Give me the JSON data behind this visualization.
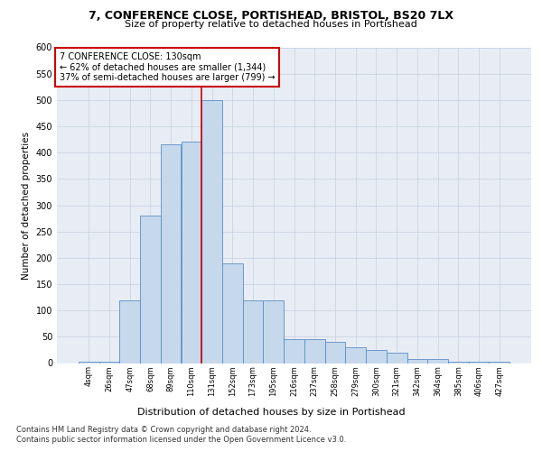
{
  "title": "7, CONFERENCE CLOSE, PORTISHEAD, BRISTOL, BS20 7LX",
  "subtitle": "Size of property relative to detached houses in Portishead",
  "xlabel": "Distribution of detached houses by size in Portishead",
  "ylabel": "Number of detached properties",
  "categories": [
    "4sqm",
    "26sqm",
    "47sqm",
    "68sqm",
    "89sqm",
    "110sqm",
    "131sqm",
    "152sqm",
    "173sqm",
    "195sqm",
    "216sqm",
    "237sqm",
    "258sqm",
    "279sqm",
    "300sqm",
    "321sqm",
    "342sqm",
    "364sqm",
    "385sqm",
    "406sqm",
    "427sqm"
  ],
  "values": [
    2,
    2,
    120,
    280,
    415,
    420,
    500,
    190,
    120,
    120,
    45,
    45,
    40,
    30,
    25,
    20,
    8,
    8,
    3,
    3,
    3
  ],
  "bar_color": "#c5d8ec",
  "bar_edge_color": "#5b8ec4",
  "vline_color": "#cc0000",
  "annotation_text": "7 CONFERENCE CLOSE: 130sqm\n← 62% of detached houses are smaller (1,344)\n37% of semi-detached houses are larger (799) →",
  "annotation_box_color": "#ffffff",
  "annotation_box_edge": "#cc0000",
  "grid_color": "#c5cfe0",
  "background_color": "#e8edf5",
  "ylim": [
    0,
    600
  ],
  "yticks": [
    0,
    50,
    100,
    150,
    200,
    250,
    300,
    350,
    400,
    450,
    500,
    550,
    600
  ],
  "footer_line1": "Contains HM Land Registry data © Crown copyright and database right 2024.",
  "footer_line2": "Contains public sector information licensed under the Open Government Licence v3.0."
}
